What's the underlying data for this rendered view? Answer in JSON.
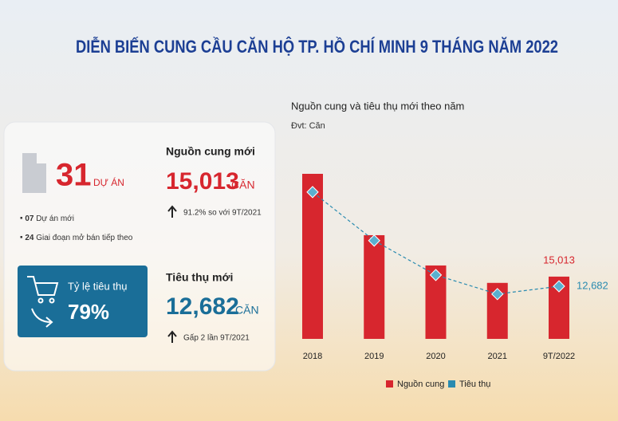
{
  "header": {
    "title": "DIỄN BIẾN CUNG CẦU CĂN HỘ TP. HỒ CHÍ MINH 9 THÁNG NĂM 2022"
  },
  "stats": {
    "projects": {
      "value": "31",
      "unit": "DỰ ÁN",
      "items": [
        {
          "count": "07",
          "text": "Dự án mới"
        },
        {
          "count": "24",
          "text": "Giai đoạn mở bán tiếp theo"
        }
      ]
    },
    "supply": {
      "label": "Nguồn cung mới",
      "value": "15,013",
      "unit": "CĂN",
      "note": "91.2% so với 9T/2021"
    },
    "absorption_rate": {
      "label": "Tỷ lệ tiêu thụ",
      "value": "79%"
    },
    "sales": {
      "label": "Tiêu thụ mới",
      "value": "12,682",
      "unit": "CĂN",
      "note": "Gấp 2 lần 9T/2021"
    }
  },
  "chart_data": {
    "type": "combo",
    "title": "Nguồn cung và tiêu thụ mới theo năm",
    "subtitle": "Đvt: Căn",
    "categories": [
      "2018",
      "2019",
      "2020",
      "2021",
      "9T/2022"
    ],
    "series": [
      {
        "name": "Nguồn cung",
        "type": "bar",
        "color": "#d7262e",
        "values": [
          39800,
          25000,
          17700,
          13500,
          15013
        ],
        "value_labels": [
          null,
          null,
          null,
          null,
          "15,013"
        ]
      },
      {
        "name": "Tiêu thụ",
        "type": "line",
        "color": "#2a8bb0",
        "values": [
          35400,
          23700,
          15400,
          10800,
          12682
        ],
        "value_labels": [
          null,
          null,
          null,
          null,
          "12,682"
        ]
      }
    ]
  }
}
